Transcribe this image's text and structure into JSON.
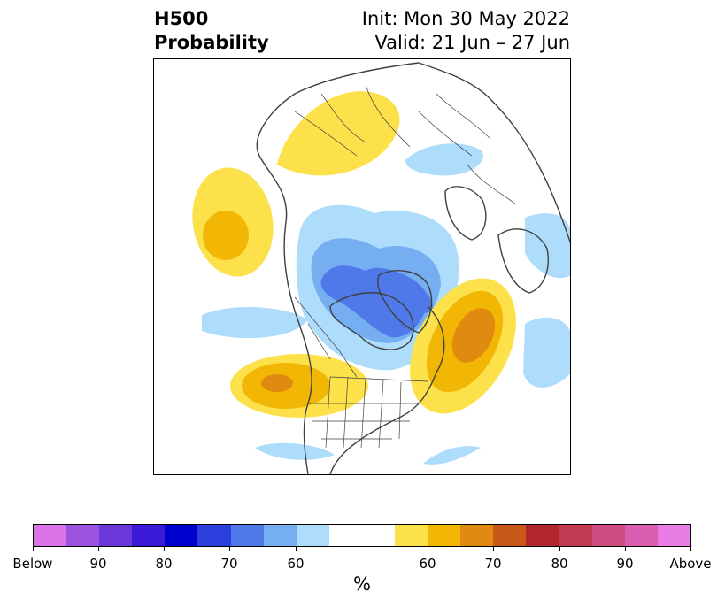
{
  "title": {
    "left_line1": "H500",
    "left_line2": "Probability",
    "right_line1": "Init: Mon 30 May 2022",
    "right_line2": "Valid: 21 Jun – 27 Jun"
  },
  "map": {
    "projection": "north-polar-stereographic",
    "features": [
      "coastlines",
      "country-borders",
      "us-state-borders"
    ],
    "anomalies": [
      {
        "region": "Arctic / North Pole",
        "sign": "below",
        "max_percent": 70
      },
      {
        "region": "Eastern Canada / Greenland",
        "sign": "below",
        "max_percent": 70
      },
      {
        "region": "Western North Atlantic",
        "sign": "above",
        "max_percent": 70
      },
      {
        "region": "Western / Central United States",
        "sign": "above",
        "max_percent": 70
      },
      {
        "region": "Gulf of Alaska / NE Pacific",
        "sign": "above",
        "max_percent": 65
      },
      {
        "region": "Central Siberia",
        "sign": "above",
        "max_percent": 60
      },
      {
        "region": "Scandinavia / Barents Sea",
        "sign": "below",
        "max_percent": 60
      },
      {
        "region": "Western Europe / NE Atlantic",
        "sign": "below",
        "max_percent": 60
      },
      {
        "region": "Bering Sea / North Pacific",
        "sign": "below",
        "max_percent": 60
      }
    ]
  },
  "colorbar": {
    "label": "%",
    "colors": [
      "#da73e8",
      "#9b54e0",
      "#6a37d8",
      "#3a1ad6",
      "#0000cc",
      "#2a3fdc",
      "#4f78e8",
      "#76aef2",
      "#aedcfb",
      "#ffffff",
      "#fde14b",
      "#f2b705",
      "#e08a10",
      "#c7581a",
      "#b0262a",
      "#c23a52",
      "#cf4e82",
      "#db5fb0",
      "#e87ee3"
    ],
    "ticks": [
      "Below",
      "90",
      "80",
      "70",
      "60",
      "60",
      "70",
      "80",
      "90",
      "Above"
    ]
  }
}
